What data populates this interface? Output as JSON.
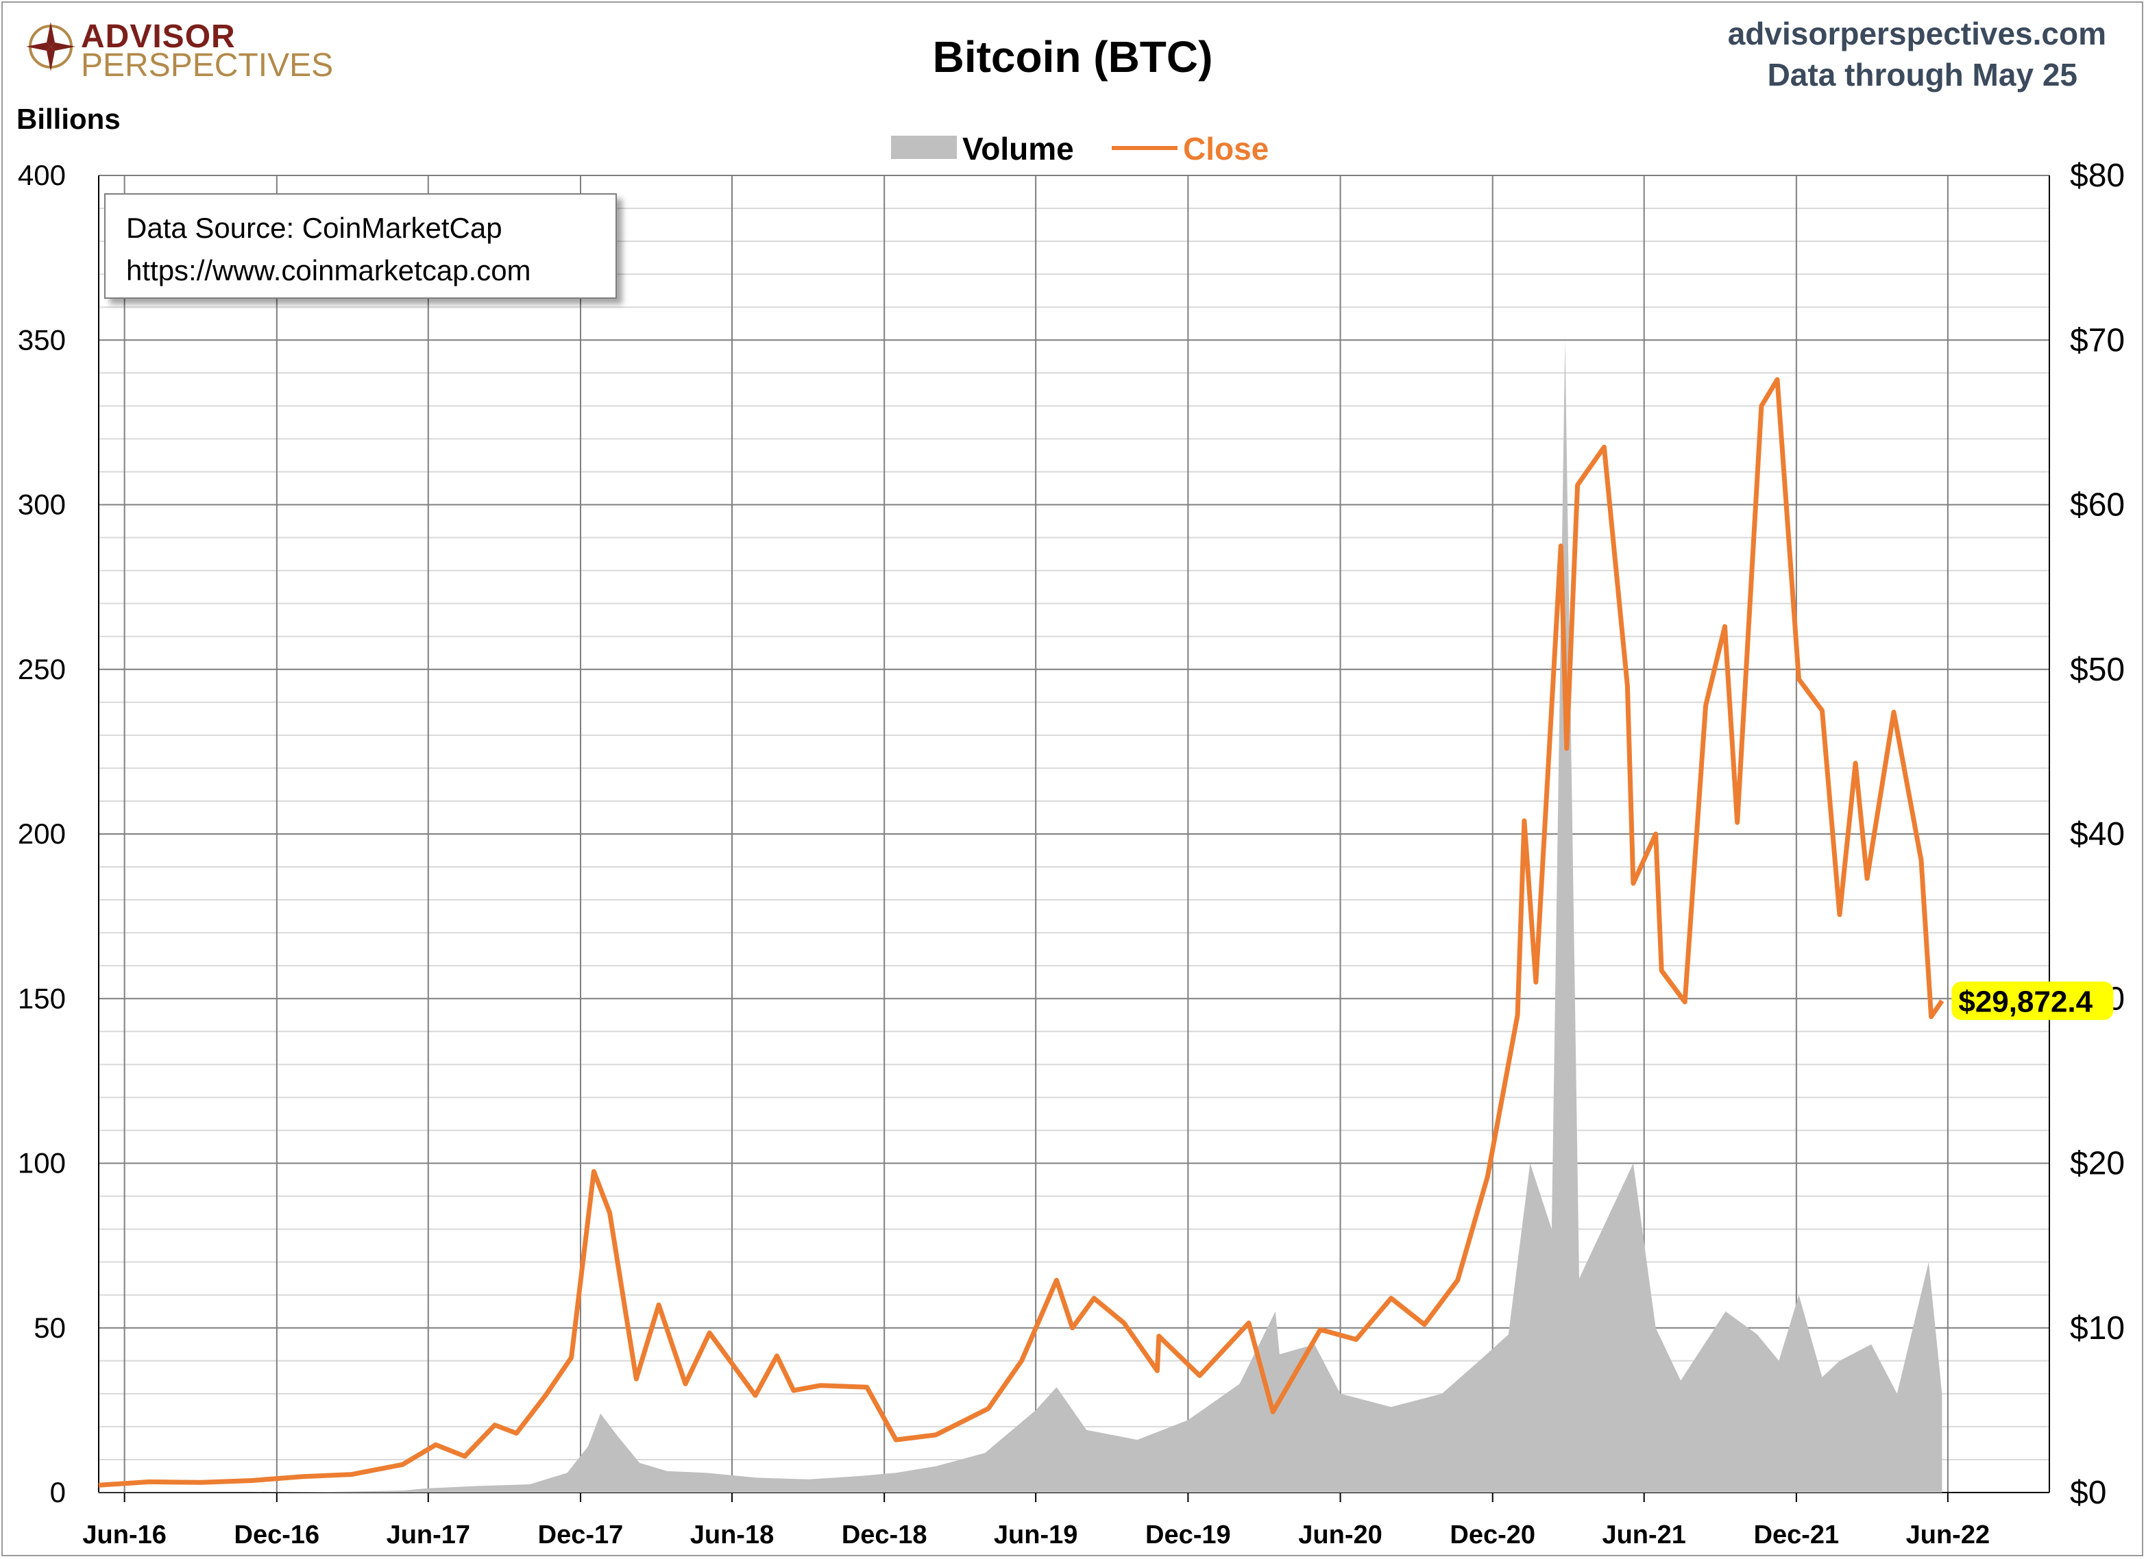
{
  "header": {
    "logo_top": "ADVISOR",
    "logo_bottom": "PERSPECTIVES",
    "title": "Bitcoin (BTC)",
    "site": "advisorperspectives.com",
    "data_through": "Data through May 25"
  },
  "source_box": {
    "line1": "Data Source: CoinMarketCap",
    "line2": "https://www.coinmarketcap.com"
  },
  "colors": {
    "volume": "#bfbfbf",
    "close": "#ed7d31",
    "grid": "#7f7f7f",
    "minor_grid": "#d9d9d9",
    "highlight": "#ffff00"
  },
  "chart_data": {
    "type": "area",
    "title": "Bitcoin (BTC)",
    "left_axis": {
      "label": "Billions",
      "ticks": [
        "0",
        "50",
        "100",
        "150",
        "200",
        "250",
        "300",
        "350",
        "400"
      ],
      "range": [
        0,
        400
      ]
    },
    "right_axis": {
      "label": "",
      "ticks": [
        "$0",
        "$10",
        "$20",
        "$30",
        "$40",
        "$50",
        "$60",
        "$70",
        "$80"
      ],
      "range": [
        0,
        80
      ]
    },
    "x_axis": {
      "ticks": [
        "Jun-16",
        "Dec-16",
        "Jun-17",
        "Dec-17",
        "Jun-18",
        "Dec-18",
        "Jun-19",
        "Dec-19",
        "Jun-20",
        "Dec-20",
        "Jun-21",
        "Dec-21",
        "Jun-22"
      ],
      "range": [
        "2016-05-01",
        "2022-10-01"
      ]
    },
    "legend": {
      "position": "top-center"
    },
    "series": [
      {
        "name": "Volume",
        "axis": "left",
        "units": "Billions",
        "points": [
          [
            "2016-05-01",
            0.1
          ],
          [
            "2016-08-01",
            0.1
          ],
          [
            "2016-11-01",
            0.1
          ],
          [
            "2017-02-01",
            0.2
          ],
          [
            "2017-05-01",
            0.6
          ],
          [
            "2017-06-01",
            1.3
          ],
          [
            "2017-08-01",
            2
          ],
          [
            "2017-10-01",
            2.5
          ],
          [
            "2017-11-15",
            6
          ],
          [
            "2017-12-10",
            14
          ],
          [
            "2017-12-25",
            24
          ],
          [
            "2018-01-15",
            17
          ],
          [
            "2018-02-10",
            9
          ],
          [
            "2018-03-15",
            6.5
          ],
          [
            "2018-05-01",
            6
          ],
          [
            "2018-07-01",
            4.5
          ],
          [
            "2018-09-01",
            4
          ],
          [
            "2018-11-01",
            5
          ],
          [
            "2018-12-15",
            6
          ],
          [
            "2019-02-01",
            8
          ],
          [
            "2019-04-01",
            12
          ],
          [
            "2019-06-01",
            25
          ],
          [
            "2019-06-26",
            32
          ],
          [
            "2019-08-01",
            19
          ],
          [
            "2019-10-01",
            16
          ],
          [
            "2019-12-01",
            22
          ],
          [
            "2020-02-01",
            33
          ],
          [
            "2020-03-15",
            55
          ],
          [
            "2020-03-20",
            42
          ],
          [
            "2020-05-01",
            45
          ],
          [
            "2020-06-01",
            30
          ],
          [
            "2020-08-01",
            26
          ],
          [
            "2020-10-01",
            30
          ],
          [
            "2020-11-15",
            40
          ],
          [
            "2020-12-20",
            48
          ],
          [
            "2021-01-15",
            100
          ],
          [
            "2021-02-10",
            80
          ],
          [
            "2021-02-26",
            350
          ],
          [
            "2021-03-15",
            65
          ],
          [
            "2021-05-19",
            100
          ],
          [
            "2021-06-15",
            50
          ],
          [
            "2021-07-15",
            34
          ],
          [
            "2021-09-07",
            55
          ],
          [
            "2021-10-15",
            48
          ],
          [
            "2021-11-10",
            40
          ],
          [
            "2021-12-04",
            60
          ],
          [
            "2022-01-01",
            35
          ],
          [
            "2022-01-22",
            40
          ],
          [
            "2022-03-01",
            45
          ],
          [
            "2022-04-01",
            30
          ],
          [
            "2022-05-09",
            70
          ],
          [
            "2022-05-25",
            30
          ]
        ]
      },
      {
        "name": "Close",
        "axis": "right",
        "units": "$ thousands",
        "last_value_label": "$29,872.4",
        "points": [
          [
            "2016-05-01",
            0.45
          ],
          [
            "2016-07-01",
            0.65
          ],
          [
            "2016-09-01",
            0.61
          ],
          [
            "2016-11-01",
            0.73
          ],
          [
            "2017-01-01",
            0.97
          ],
          [
            "2017-03-01",
            1.1
          ],
          [
            "2017-05-01",
            1.7
          ],
          [
            "2017-06-10",
            2.9
          ],
          [
            "2017-07-15",
            2.2
          ],
          [
            "2017-08-20",
            4.1
          ],
          [
            "2017-09-15",
            3.6
          ],
          [
            "2017-10-20",
            5.9
          ],
          [
            "2017-11-20",
            8.2
          ],
          [
            "2017-12-17",
            19.5
          ],
          [
            "2018-01-05",
            17
          ],
          [
            "2018-02-06",
            6.9
          ],
          [
            "2018-03-05",
            11.4
          ],
          [
            "2018-04-06",
            6.6
          ],
          [
            "2018-05-05",
            9.7
          ],
          [
            "2018-06-29",
            5.9
          ],
          [
            "2018-07-25",
            8.3
          ],
          [
            "2018-08-14",
            6.2
          ],
          [
            "2018-09-15",
            6.5
          ],
          [
            "2018-11-10",
            6.4
          ],
          [
            "2018-12-15",
            3.2
          ],
          [
            "2019-02-01",
            3.5
          ],
          [
            "2019-04-05",
            5.1
          ],
          [
            "2019-05-15",
            8
          ],
          [
            "2019-06-26",
            12.9
          ],
          [
            "2019-07-15",
            10
          ],
          [
            "2019-08-10",
            11.8
          ],
          [
            "2019-09-15",
            10.3
          ],
          [
            "2019-10-25",
            7.4
          ],
          [
            "2019-10-27",
            9.5
          ],
          [
            "2019-12-15",
            7.1
          ],
          [
            "2020-02-12",
            10.3
          ],
          [
            "2020-03-12",
            4.9
          ],
          [
            "2020-05-08",
            9.9
          ],
          [
            "2020-06-20",
            9.3
          ],
          [
            "2020-08-01",
            11.8
          ],
          [
            "2020-09-10",
            10.2
          ],
          [
            "2020-10-20",
            12.9
          ],
          [
            "2020-11-25",
            19.2
          ],
          [
            "2020-12-31",
            29
          ],
          [
            "2021-01-08",
            40.8
          ],
          [
            "2021-01-22",
            31
          ],
          [
            "2021-02-21",
            57.5
          ],
          [
            "2021-02-28",
            45.2
          ],
          [
            "2021-03-13",
            61.2
          ],
          [
            "2021-04-14",
            63.5
          ],
          [
            "2021-05-12",
            49
          ],
          [
            "2021-05-19",
            37
          ],
          [
            "2021-06-15",
            40
          ],
          [
            "2021-06-22",
            31.7
          ],
          [
            "2021-07-20",
            29.8
          ],
          [
            "2021-08-14",
            47.8
          ],
          [
            "2021-09-06",
            52.6
          ],
          [
            "2021-09-21",
            40.7
          ],
          [
            "2021-10-20",
            66
          ],
          [
            "2021-11-08",
            67.6
          ],
          [
            "2021-12-04",
            49.4
          ],
          [
            "2022-01-01",
            47.5
          ],
          [
            "2022-01-22",
            35.1
          ],
          [
            "2022-02-10",
            44.3
          ],
          [
            "2022-02-24",
            37.3
          ],
          [
            "2022-03-28",
            47.4
          ],
          [
            "2022-04-30",
            38.4
          ],
          [
            "2022-05-12",
            28.9
          ],
          [
            "2022-05-25",
            29.87
          ]
        ]
      }
    ]
  }
}
